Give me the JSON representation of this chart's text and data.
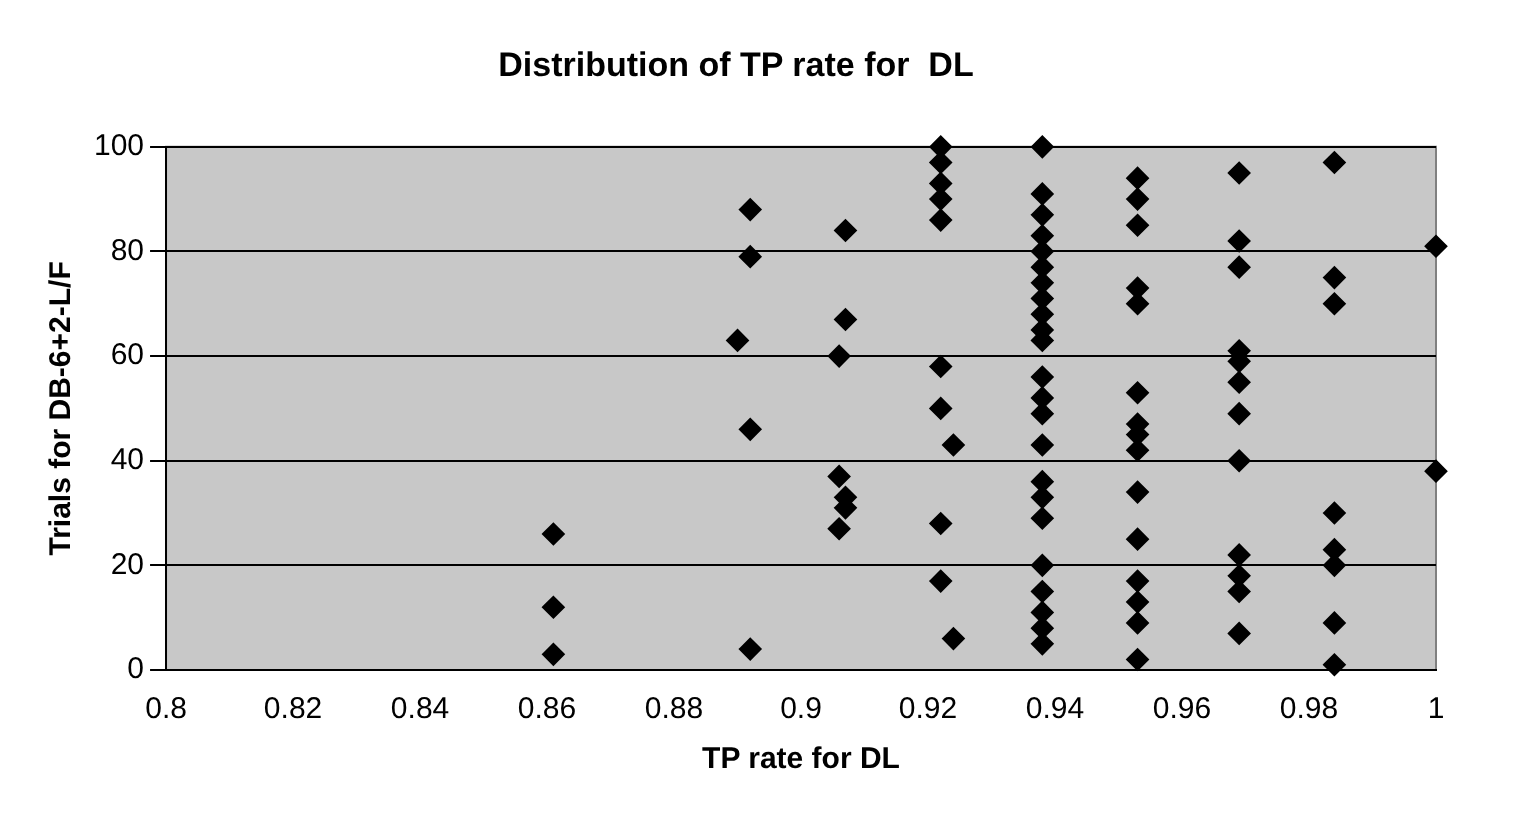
{
  "chart_data": {
    "type": "scatter",
    "title": "Distribution of TP rate for  DL",
    "xlabel": "TP rate for DL",
    "ylabel": "Trials for DB-6+2-L/F",
    "series": [
      {
        "color": "#000000",
        "x": [
          0.861,
          0.861,
          0.861,
          0.892,
          0.892,
          0.892,
          0.892,
          0.89,
          0.906,
          0.906,
          0.906,
          0.907,
          0.907,
          0.907,
          0.907,
          0.922,
          0.922,
          0.922,
          0.922,
          0.922,
          0.922,
          0.922,
          0.922,
          0.922,
          0.924,
          0.924,
          0.938,
          0.938,
          0.938,
          0.938,
          0.938,
          0.938,
          0.938,
          0.938,
          0.938,
          0.938,
          0.938,
          0.938,
          0.938,
          0.938,
          0.938,
          0.938,
          0.938,
          0.938,
          0.938,
          0.938,
          0.938,
          0.938,
          0.938,
          0.953,
          0.953,
          0.953,
          0.953,
          0.953,
          0.953,
          0.953,
          0.953,
          0.953,
          0.953,
          0.953,
          0.953,
          0.953,
          0.953,
          0.953,
          0.969,
          0.969,
          0.969,
          0.969,
          0.969,
          0.969,
          0.969,
          0.969,
          0.969,
          0.969,
          0.969,
          0.969,
          0.984,
          0.984,
          0.984,
          0.984,
          0.984,
          0.984,
          0.984,
          0.984,
          1,
          1
        ],
        "values": [
          26,
          12,
          3,
          88,
          79,
          46,
          4,
          63,
          60,
          37,
          27,
          84,
          67,
          33,
          31,
          100,
          97,
          93,
          90,
          86,
          58,
          50,
          28,
          17,
          43,
          6,
          100,
          91,
          87,
          83,
          80,
          77,
          74,
          71,
          68,
          65,
          63,
          56,
          52,
          49,
          43,
          36,
          33,
          29,
          20,
          15,
          11,
          8,
          5,
          94,
          90,
          85,
          73,
          70,
          53,
          47,
          45,
          42,
          34,
          25,
          17,
          13,
          9,
          2,
          95,
          82,
          77,
          61,
          59,
          55,
          49,
          40,
          22,
          18,
          15,
          7,
          97,
          75,
          70,
          30,
          23,
          20,
          9,
          1,
          81,
          38
        ]
      }
    ],
    "xlim": [
      0.8,
      1
    ],
    "xticks": [
      0.8,
      0.82,
      0.84,
      0.86,
      0.88,
      0.9,
      0.92,
      0.94,
      0.96,
      0.98,
      1
    ],
    "ylim": [
      0,
      100
    ],
    "yticks": [
      0,
      20,
      40,
      60,
      80,
      100
    ],
    "grid": "y",
    "legend": false,
    "marker": "diamond"
  }
}
